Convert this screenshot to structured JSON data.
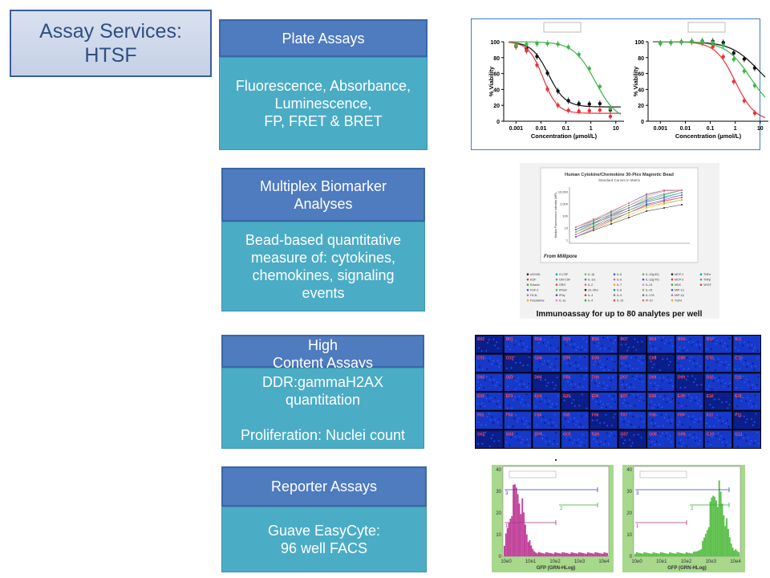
{
  "title": {
    "line1": "Assay Services:",
    "line2": "HTSF"
  },
  "cards": {
    "plate": {
      "head": "Plate Assays",
      "body": [
        "Fluorescence, Absorbance,",
        "Luminescence,",
        "FP, FRET & BRET"
      ]
    },
    "multiplex": {
      "head": [
        "Multiplex Biomarker",
        "Analyses"
      ],
      "body": [
        "Bead-based quantitative",
        "measure of: cytokines,",
        "chemokines, signaling",
        "events"
      ]
    },
    "hca": {
      "head": [
        "High",
        "Content Assays"
      ],
      "body": [
        "DDR:gammaH2AX",
        "quantitation",
        "",
        "Proliferation: Nuclei count"
      ]
    },
    "reporter": {
      "head": "Reporter Assays",
      "body": [
        "Guave EasyCyte:",
        "96 well FACS"
      ]
    }
  },
  "viability_charts": {
    "ylabel": "% Viability",
    "xlabel": "Concentration (µmol/L)",
    "yticks": [
      "0",
      "20",
      "40",
      "60",
      "80",
      "100"
    ],
    "xticks_left": [
      "0.001",
      "0.01",
      "0.1",
      "1",
      "10"
    ],
    "xticks_right": [
      "0.001",
      "0.01",
      "0.1",
      "1",
      "10"
    ],
    "colors": {
      "black": "#111111",
      "red": "#e8333a",
      "green": "#3cb54a"
    }
  },
  "multiplex_panel": {
    "title": "Human Cytokine/Chemokine 30-Plex Magnetic Bead",
    "subtitle": "Standard Curves in Matrix",
    "source": "From Millipore",
    "yaxis_label": "Median Fluorescence Intensity (MFI)",
    "yticks": [
      "10,000",
      "1,000",
      "100",
      "10",
      "1"
    ],
    "caption": "Immunoassay for up to 80  analytes per well",
    "legend": [
      "sCD40L",
      "EGF",
      "Eotaxin",
      "FGF-2",
      "Flt-3L",
      "Fractalkine",
      "G-CSF",
      "GM-CSF",
      "GRO",
      "IFNα2",
      "IFNγ",
      "IL-1α",
      "IL-1β",
      "IL-1ra",
      "IL-2",
      "sIL-2Rα",
      "IL-3",
      "IL-4",
      "IL-5",
      "IL-6",
      "IL-7",
      "IL-8",
      "IL-9",
      "IL-10",
      "IL-12(p40)",
      "IL-12(p70)",
      "IL-13",
      "IL-15",
      "IL-17A",
      "IP-10",
      "MCP-1",
      "MCP-3",
      "MDC",
      "MIP-1α",
      "MIP-1β",
      "TGFα",
      "TNFα",
      "TNFβ",
      "VEGF"
    ]
  },
  "hca_panel": {
    "wells": [
      [
        "B02",
        "B03",
        "B04",
        "B05",
        "B06",
        "B07",
        "B08",
        "B09",
        "B10",
        "B11"
      ],
      [
        "C02",
        "C03",
        "C04",
        "C05",
        "C06",
        "C07",
        "C08",
        "C09",
        "C10",
        "C11"
      ],
      [
        "D02",
        "D03",
        "D04",
        "D05",
        "D06",
        "D07",
        "D08",
        "D09",
        "D10",
        "D11"
      ],
      [
        "E02",
        "E03",
        "E04",
        "E05",
        "E06",
        "E07",
        "E08",
        "E09",
        "E10",
        "E11"
      ],
      [
        "F02",
        "F03",
        "F04",
        "F05",
        "F06",
        "F07",
        "F08",
        "F09",
        "F10",
        "F11"
      ],
      [
        "G02",
        "G03",
        "G04",
        "G05",
        "G06",
        "G07",
        "G08",
        "G09",
        "G10",
        "G11"
      ]
    ]
  },
  "facs_panels": {
    "xlabel": "GFP (GRN-HLog)",
    "xticks": [
      "10e0",
      "10e1",
      "10e2",
      "10e3",
      "10e4"
    ],
    "yticks": [
      "0",
      "10",
      "20",
      "30",
      "40"
    ],
    "gate_labels": [
      "3",
      "2",
      "1"
    ],
    "colors": {
      "left": "#c0439a",
      "right": "#5cc04a",
      "frame": "#a7d88b"
    }
  }
}
